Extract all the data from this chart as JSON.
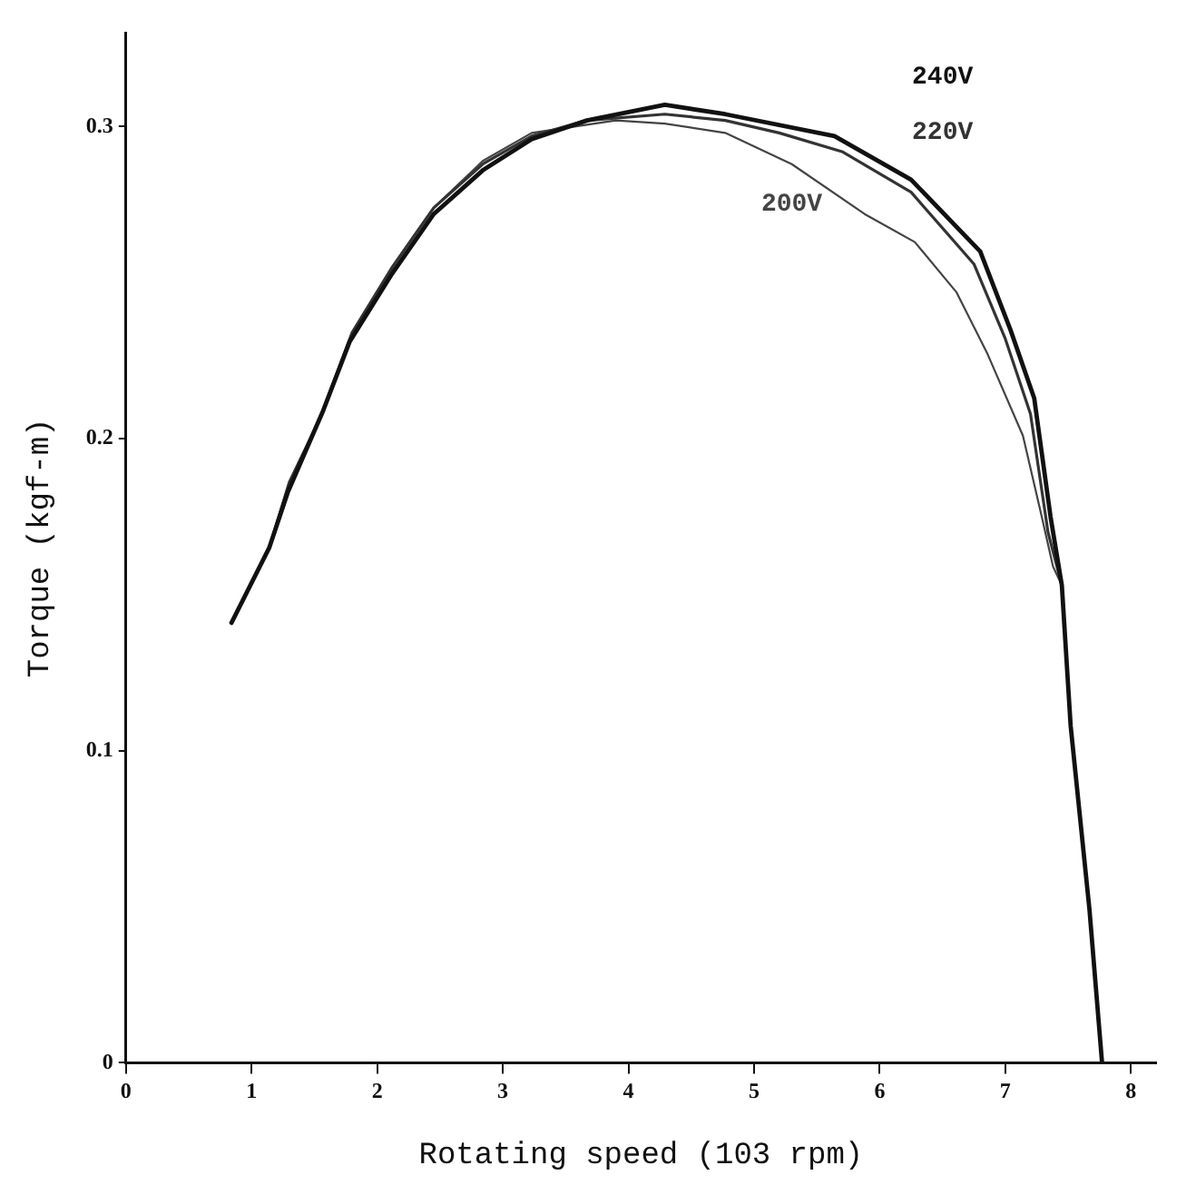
{
  "chart_data": {
    "type": "line",
    "xlabel": "Rotating speed (103 rpm)",
    "ylabel": "Torque (kgf-m)",
    "xlim": [
      0,
      8.2
    ],
    "ylim": [
      0,
      0.33
    ],
    "xticks": [
      0,
      1,
      2,
      3,
      4,
      5,
      6,
      7,
      8
    ],
    "yticks": [
      0,
      0.1,
      0.2,
      0.3
    ],
    "grid": false,
    "legend": false,
    "marker": "none",
    "line_style": "solid",
    "series": [
      {
        "name": "240V",
        "color": "#111111",
        "x": [
          0.84,
          1.14,
          1.29,
          1.57,
          1.78,
          2.12,
          2.45,
          2.84,
          3.23,
          3.67,
          4.29,
          4.77,
          5.64,
          6.25,
          6.8,
          7.04,
          7.23,
          7.36,
          7.45,
          7.52,
          7.67,
          7.77
        ],
        "values": [
          0.141,
          0.165,
          0.183,
          0.209,
          0.231,
          0.253,
          0.272,
          0.286,
          0.296,
          0.302,
          0.307,
          0.304,
          0.297,
          0.283,
          0.26,
          0.235,
          0.213,
          0.175,
          0.153,
          0.108,
          0.049,
          0
        ]
      },
      {
        "name": "220V",
        "color": "#333333",
        "x": [
          0.84,
          1.14,
          1.3,
          1.55,
          1.8,
          2.12,
          2.45,
          2.84,
          3.23,
          3.67,
          4.29,
          4.77,
          5.2,
          5.7,
          6.25,
          6.75,
          7.0,
          7.2,
          7.34,
          7.45
        ],
        "values": [
          0.141,
          0.165,
          0.186,
          0.207,
          0.234,
          0.255,
          0.274,
          0.288,
          0.297,
          0.302,
          0.304,
          0.302,
          0.298,
          0.292,
          0.279,
          0.256,
          0.232,
          0.208,
          0.17,
          0.153
        ]
      },
      {
        "name": "200V",
        "color": "#444444",
        "x": [
          0.84,
          1.14,
          1.3,
          1.55,
          1.8,
          2.12,
          2.45,
          2.84,
          3.23,
          3.9,
          4.29,
          4.77,
          5.3,
          5.88,
          6.28,
          6.61,
          6.86,
          7.14,
          7.29,
          7.38,
          7.45
        ],
        "values": [
          0.141,
          0.165,
          0.186,
          0.207,
          0.234,
          0.255,
          0.274,
          0.289,
          0.298,
          0.302,
          0.301,
          0.298,
          0.288,
          0.272,
          0.263,
          0.247,
          0.227,
          0.201,
          0.175,
          0.159,
          0.153
        ]
      }
    ]
  }
}
